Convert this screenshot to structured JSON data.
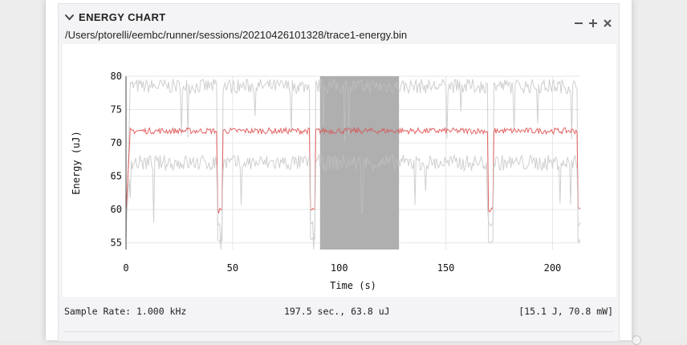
{
  "panel": {
    "title": "ENERGY CHART",
    "file_path": "/Users/ptorelli/eembc/runner/sessions/20210426101328/trace1-energy.bin",
    "icons": {
      "collapse": "chevron-down-icon",
      "minimize": "minus-icon",
      "maximize": "plus-icon",
      "close": "close-icon"
    }
  },
  "status": {
    "sample_rate": "Sample Rate: 1.000 kHz",
    "summary": "197.5 sec., 63.8 uJ",
    "totals": "[15.1 J, 70.8 mW]"
  },
  "chart_data": {
    "type": "line",
    "xlabel": "Time (s)",
    "ylabel": "Energy (uJ)",
    "xlim": [
      0,
      213
    ],
    "ylim": [
      54,
      80
    ],
    "x_ticks": [
      0,
      50,
      100,
      150,
      200
    ],
    "y_ticks": [
      55,
      60,
      65,
      70,
      75,
      80
    ],
    "grid": true,
    "selection": {
      "x_start": 91,
      "x_end": 128
    },
    "dip_times": [
      43,
      86.5,
      170,
      212
    ],
    "series": [
      {
        "role": "max",
        "color": "#cfcfcf",
        "base": 78.5,
        "dip_low": 55
      },
      {
        "role": "avg",
        "color": "#e36363",
        "base": 71.8,
        "dip_low": 59.5
      },
      {
        "role": "min",
        "color": "#cfcfcf",
        "base": 67,
        "dip_low": 57.5
      }
    ]
  }
}
